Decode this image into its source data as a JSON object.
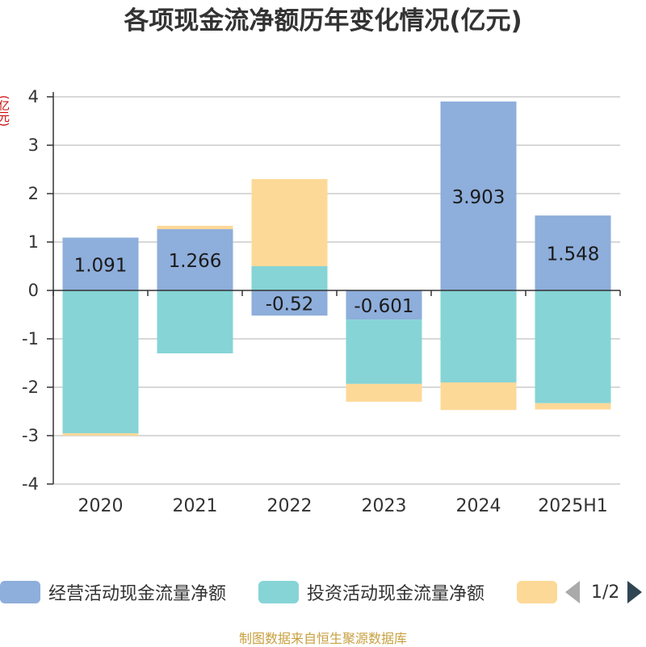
{
  "title": "各项现金流净额历年变化情况(亿元)",
  "unit_label": "(亿元)",
  "source": "制图数据来自恒生聚源数据库",
  "pager": "1/2",
  "chart_data": {
    "type": "bar",
    "stacked": true,
    "categories": [
      "2020",
      "2021",
      "2022",
      "2023",
      "2024",
      "2025H1"
    ],
    "ylim": [
      -4,
      4
    ],
    "yticks": [
      4,
      3,
      2,
      1,
      0,
      -1,
      -2,
      -3,
      -4
    ],
    "grid": true,
    "legend_position": "bottom",
    "series": [
      {
        "name": "经营活动现金流量净额",
        "color": "#8eaedb",
        "values": [
          1.091,
          1.266,
          -0.52,
          -0.601,
          3.903,
          1.548
        ],
        "labels": [
          "1.091",
          "1.266",
          "-0.52",
          "-0.601",
          "3.903",
          "1.548"
        ]
      },
      {
        "name": "投资活动现金流量净额",
        "color": "#86d4d6",
        "values": [
          -2.95,
          -1.3,
          0.5,
          -1.33,
          -1.9,
          -2.33
        ]
      },
      {
        "name": "",
        "color": "#fdd998",
        "values": [
          -0.05,
          0.07,
          1.8,
          -0.37,
          -0.57,
          -0.13
        ]
      }
    ]
  }
}
